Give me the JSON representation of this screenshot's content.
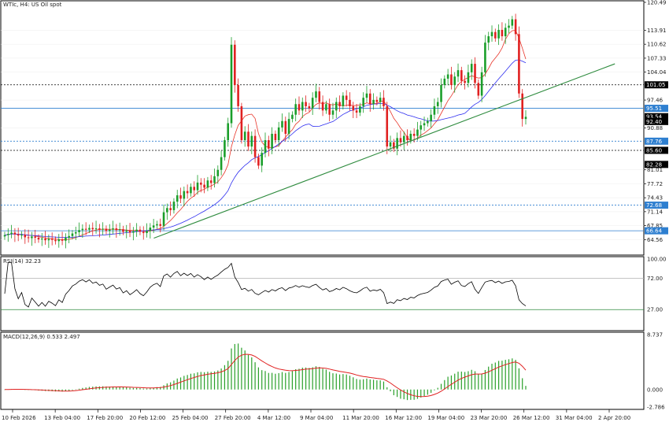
{
  "chart_data": {
    "type": "candlestick",
    "title": "WTIc, H4: US Oil spot",
    "symbol": "WTIc",
    "timeframe": "H4",
    "instrument": "US Oil spot",
    "price_axis": {
      "ylim": [
        61.28,
        120.49
      ],
      "ticks": [
        120.49,
        113.91,
        110.62,
        107.33,
        104.04,
        97.46,
        90.88,
        81.01,
        77.72,
        74.43,
        71.14,
        67.85,
        64.56
      ]
    },
    "price_tags": [
      {
        "value": 101.05,
        "label": "101.05",
        "bg": "#000000",
        "fg": "#ffffff"
      },
      {
        "value": 95.51,
        "label": "95.51",
        "bg": "#2e7fd0",
        "fg": "#ffffff"
      },
      {
        "value": 93.54,
        "label": "93.54",
        "bg": "#000000",
        "fg": "#ffffff"
      },
      {
        "value": 92.4,
        "label": "92.40",
        "bg": "#000000",
        "fg": "#ffffff"
      },
      {
        "value": 87.76,
        "label": "87.76",
        "bg": "#2e7fd0",
        "fg": "#ffffff"
      },
      {
        "value": 85.6,
        "label": "85.60",
        "bg": "#000000",
        "fg": "#ffffff"
      },
      {
        "value": 82.28,
        "label": "82.28",
        "bg": "#000000",
        "fg": "#ffffff"
      },
      {
        "value": 72.68,
        "label": "72.68",
        "bg": "#2e7fd0",
        "fg": "#ffffff"
      },
      {
        "value": 66.64,
        "label": "66.64",
        "bg": "#2e7fd0",
        "fg": "#ffffff"
      }
    ],
    "horizontal_levels": [
      {
        "value": 101.05,
        "style": "dotted",
        "color": "#000000"
      },
      {
        "value": 95.51,
        "style": "solid",
        "color": "#2e7fd0"
      },
      {
        "value": 87.76,
        "style": "dotted",
        "color": "#2e7fd0"
      },
      {
        "value": 85.6,
        "style": "dotted",
        "color": "#000000"
      },
      {
        "value": 72.68,
        "style": "dotted",
        "color": "#2e7fd0"
      },
      {
        "value": 66.64,
        "style": "solid",
        "color": "#2e7fd0"
      }
    ],
    "trendline": {
      "from": [
        0.238,
        64.9
      ],
      "to": [
        0.955,
        106.0
      ],
      "color": "#2e8b3e"
    },
    "x_labels": [
      "10 Feb 2026",
      "13 Feb 04:00",
      "17 Feb 20:00",
      "20 Feb 12:00",
      "25 Feb 04:00",
      "27 Feb 20:00",
      "4 Mar 12:00",
      "9 Mar 04:00",
      "11 Mar 20:00",
      "16 Mar 12:00",
      "19 Mar 04:00",
      "23 Mar 20:00",
      "26 Mar 12:00",
      "31 Mar 04:00",
      "2 Apr 20:00"
    ],
    "candles_close": [
      65.6,
      65.9,
      66.2,
      65.8,
      65.5,
      65.7,
      65.1,
      64.9,
      65.3,
      65.0,
      64.6,
      64.8,
      64.4,
      64.7,
      64.5,
      64.2,
      64.6,
      64.3,
      65.0,
      65.4,
      66.0,
      66.3,
      66.8,
      67.1,
      66.9,
      67.3,
      67.0,
      67.2,
      66.9,
      67.1,
      66.6,
      66.9,
      67.2,
      66.8,
      67.0,
      66.4,
      66.7,
      66.2,
      66.5,
      66.9,
      66.4,
      66.1,
      66.6,
      67.4,
      67.9,
      68.2,
      67.8,
      71.0,
      72.0,
      71.5,
      73.5,
      75.0,
      74.2,
      76.0,
      75.5,
      77.0,
      76.2,
      78.0,
      77.5,
      76.8,
      78.5,
      77.9,
      79.5,
      81.0,
      84.0,
      88.0,
      92.0,
      110.5,
      101.0,
      96.0,
      88.0,
      90.0,
      86.5,
      89.0,
      84.0,
      82.0,
      85.0,
      88.0,
      86.0,
      89.5,
      88.0,
      91.0,
      92.5,
      89.5,
      93.0,
      94.0,
      96.5,
      95.0,
      97.0,
      96.0,
      95.5,
      98.0,
      99.5,
      97.0,
      95.0,
      96.5,
      94.0,
      95.0,
      97.0,
      96.0,
      98.5,
      97.5,
      96.0,
      95.0,
      94.5,
      96.0,
      98.0,
      99.0,
      96.5,
      97.5,
      97.0,
      98.0,
      96.0,
      86.5,
      87.5,
      86.0,
      88.5,
      87.5,
      89.0,
      88.0,
      89.5,
      89.0,
      90.5,
      91.5,
      92.0,
      92.5,
      94.0,
      96.0,
      97.0,
      101.0,
      102.5,
      103.5,
      101.0,
      103.0,
      104.5,
      102.0,
      101.5,
      104.0,
      106.0,
      101.5,
      98.5,
      104.0,
      111.0,
      112.5,
      113.5,
      112.0,
      114.0,
      112.5,
      114.5,
      115.0,
      116.5,
      113.0,
      99.0,
      93.0,
      93.5
    ],
    "sma_fast_color": "#e8352a",
    "sma_slow_color": "#2d2df0",
    "rsi": {
      "label": "RSI(14) 32.23",
      "ylim": [
        0,
        100
      ],
      "ticks": [
        100.0,
        72.0,
        27.0
      ],
      "levels": [
        72.0,
        27.0
      ],
      "current": 32.23
    },
    "macd": {
      "label": "MACD(12,26,9) 0.533 2.497",
      "histogram_last": 0.533,
      "signal_last": 2.497,
      "ticks": [
        8.737,
        0.0,
        -2.786
      ],
      "ylim": [
        -2.786,
        8.737
      ]
    }
  },
  "colors": {
    "bull": "#1a9e2a",
    "bear": "#e02020",
    "grid": "#c8c8c8",
    "axis": "#000000",
    "macd_hist": "#2aa02a",
    "macd_signal": "#e02020",
    "rsi_line": "#000000",
    "level_green": "#2e8b3e"
  }
}
